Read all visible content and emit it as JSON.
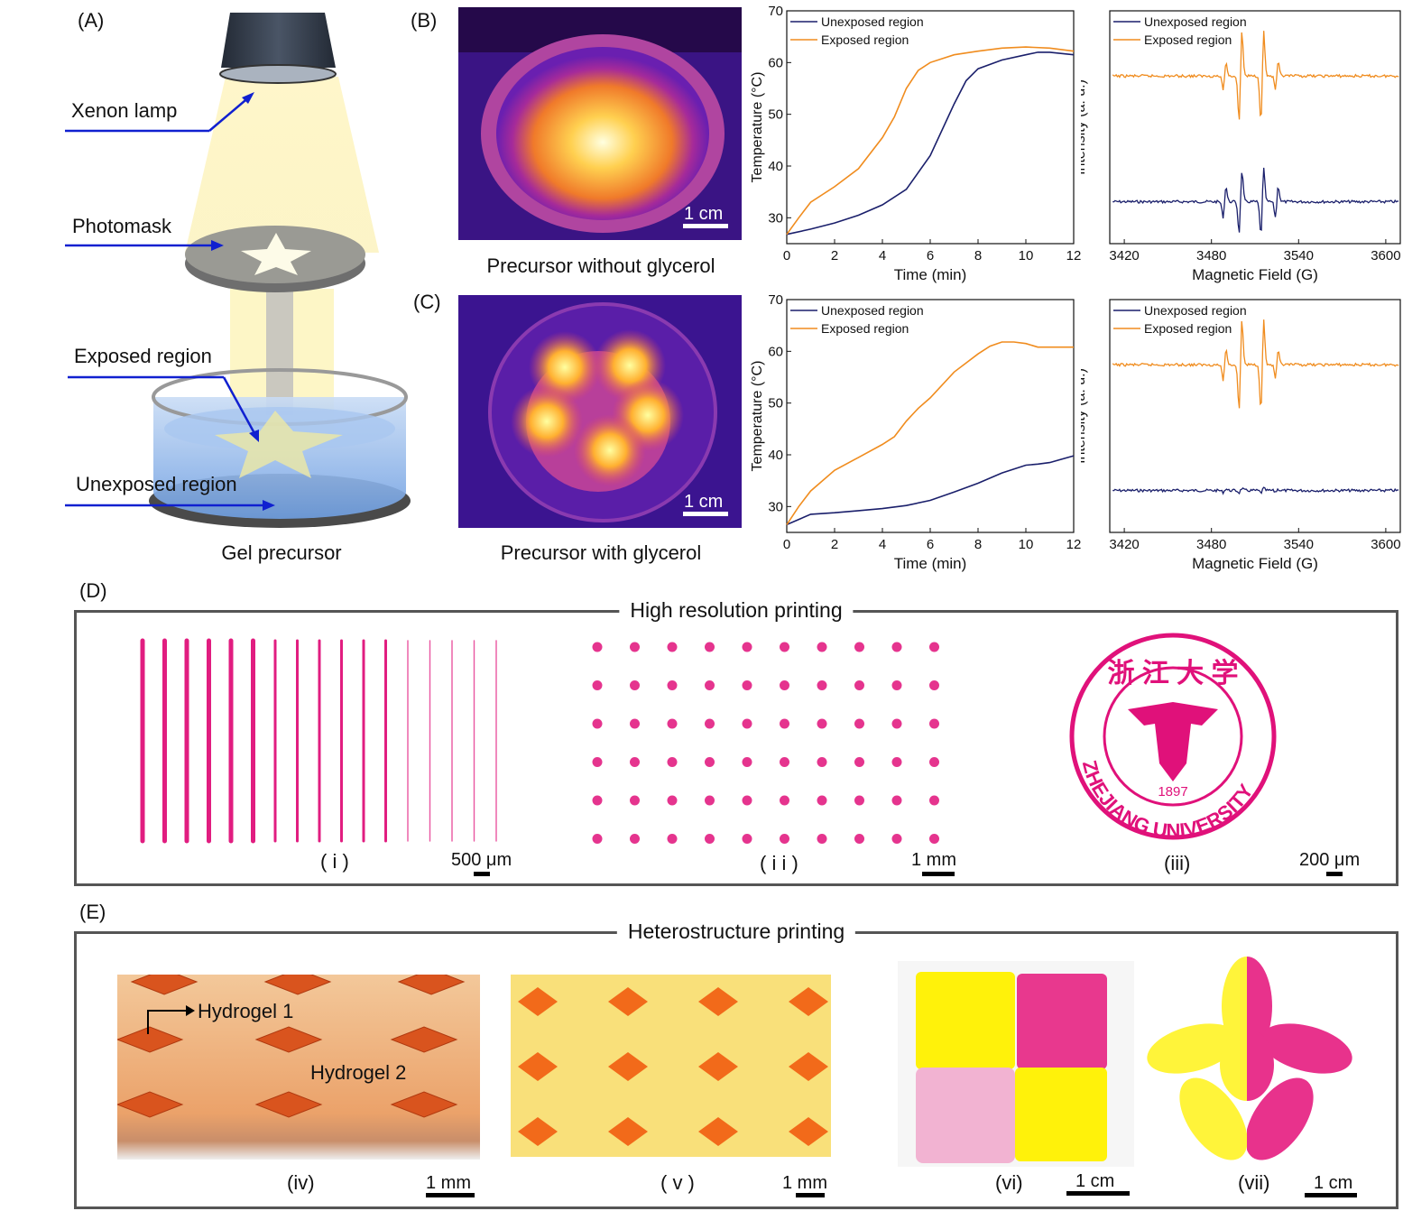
{
  "colors": {
    "navy": "#1a1f6b",
    "orange": "#f08c1e",
    "magenta": "#e0117a",
    "yellow": "#ffe800",
    "arrow": "#1020d0"
  },
  "panelA": {
    "label": "(A)",
    "xenon": "Xenon lamp",
    "photomask": "Photomask",
    "exposed": "Exposed region",
    "unexposed": "Unexposed region",
    "caption": "Gel precursor"
  },
  "panelB": {
    "label": "(B)",
    "caption": "Precursor without glycerol",
    "scale": "1 cm"
  },
  "panelC": {
    "label": "(C)",
    "caption": "Precursor with glycerol",
    "scale": "1 cm"
  },
  "panelD": {
    "label": "(D)",
    "title": "High resolution printing",
    "i": "( i )",
    "ii": "( i i )",
    "iii": "(iii)",
    "s1": "500 μm",
    "s2": "1 mm",
    "s3": "200 μm",
    "seal_text": "ZHEJIANG UNIVERSITY",
    "seal_year": "1897",
    "seal_chars": "浙 江 大 学"
  },
  "panelE": {
    "label": "(E)",
    "title": "Heterostructure printing",
    "iv": "(iv)",
    "v": "( v )",
    "vi": "(vi)",
    "vii": "(vii)",
    "h1": "Hydrogel 1",
    "h2": "Hydrogel 2",
    "s4": "1 mm",
    "s5": "1 mm",
    "s6": "1 cm",
    "s7": "1 cm"
  },
  "chart_data": [
    {
      "type": "line",
      "panel": "B",
      "xlabel": "Time (min)",
      "ylabel": "Temperature (°C)",
      "xlim": [
        0,
        12
      ],
      "ylim": [
        25,
        70
      ],
      "xticks": [
        0,
        2,
        4,
        6,
        8,
        10,
        12
      ],
      "yticks": [
        30,
        40,
        50,
        60,
        70
      ],
      "series": [
        {
          "name": "Unexposed region",
          "color": "#1a1f6b",
          "x": [
            0,
            1,
            2,
            3,
            4,
            5,
            6,
            7,
            7.5,
            8,
            9,
            10,
            10.5,
            11,
            12
          ],
          "y": [
            26.8,
            27.8,
            29,
            30.5,
            32.5,
            35.5,
            42,
            52,
            56.5,
            58.8,
            60.5,
            61.5,
            62,
            62,
            61.5
          ]
        },
        {
          "name": "Exposed region",
          "color": "#f08c1e",
          "x": [
            0,
            0.5,
            1,
            2,
            3,
            4,
            4.5,
            5,
            5.5,
            6,
            7,
            8,
            9,
            10,
            11,
            12
          ],
          "y": [
            26.8,
            30,
            33,
            36,
            39.5,
            45.5,
            49.5,
            55,
            58.5,
            60,
            61.5,
            62.2,
            62.8,
            63,
            62.8,
            62.2
          ]
        }
      ]
    },
    {
      "type": "line",
      "panel": "B",
      "xlabel": "Magnetic Field (G)",
      "ylabel": "Intensity (a. u.)",
      "xlim": [
        3410,
        3610
      ],
      "xticks": [
        3420,
        3480,
        3540,
        3600
      ],
      "series": [
        {
          "name": "Unexposed region",
          "color": "#1a1f6b",
          "baseline": 0.18,
          "peaks": [
            [
              3489,
              0.35
            ],
            [
              3500,
              0.7
            ],
            [
              3515,
              0.75
            ],
            [
              3525,
              0.35
            ]
          ]
        },
        {
          "name": "Exposed region",
          "color": "#f08c1e",
          "baseline": 0.72,
          "peaks": [
            [
              3489,
              0.3
            ],
            [
              3500,
              1.0
            ],
            [
              3515,
              1.0
            ],
            [
              3525,
              0.3
            ]
          ]
        }
      ]
    },
    {
      "type": "line",
      "panel": "C",
      "xlabel": "Time (min)",
      "ylabel": "Temperature (°C)",
      "xlim": [
        0,
        12
      ],
      "ylim": [
        25,
        70
      ],
      "xticks": [
        0,
        2,
        4,
        6,
        8,
        10,
        12
      ],
      "yticks": [
        30,
        40,
        50,
        60,
        70
      ],
      "series": [
        {
          "name": "Unexposed region",
          "color": "#1a1f6b",
          "x": [
            0,
            1,
            2,
            3,
            4,
            5,
            6,
            7,
            8,
            9,
            10,
            10.5,
            11,
            12
          ],
          "y": [
            26.5,
            28.5,
            28.8,
            29.2,
            29.6,
            30.2,
            31.2,
            32.8,
            34.5,
            36.5,
            38,
            38.2,
            38.5,
            39.8
          ]
        },
        {
          "name": "Exposed region",
          "color": "#f08c1e",
          "x": [
            0,
            0.5,
            1,
            2,
            3,
            4,
            4.5,
            5,
            5.5,
            6,
            7,
            8,
            8.5,
            9,
            9.5,
            10,
            10.5,
            11,
            12
          ],
          "y": [
            26.5,
            30,
            33,
            37,
            39.5,
            42,
            43.5,
            46.5,
            49,
            51,
            56,
            59.5,
            61,
            61.8,
            61.8,
            61.5,
            60.8,
            60.8,
            60.8
          ]
        }
      ]
    },
    {
      "type": "line",
      "panel": "C",
      "xlabel": "Magnetic Field (G)",
      "ylabel": "Intensity (a. u.)",
      "xlim": [
        3410,
        3610
      ],
      "xticks": [
        3420,
        3480,
        3540,
        3600
      ],
      "series": [
        {
          "name": "Unexposed region",
          "color": "#1a1f6b",
          "baseline": 0.18,
          "peaks": [
            [
              3489,
              0.04
            ],
            [
              3500,
              0.05
            ],
            [
              3515,
              0.05
            ],
            [
              3525,
              0.03
            ]
          ]
        },
        {
          "name": "Exposed region",
          "color": "#f08c1e",
          "baseline": 0.72,
          "peaks": [
            [
              3489,
              0.35
            ],
            [
              3500,
              1.0
            ],
            [
              3515,
              1.0
            ],
            [
              3525,
              0.3
            ]
          ]
        }
      ]
    }
  ]
}
